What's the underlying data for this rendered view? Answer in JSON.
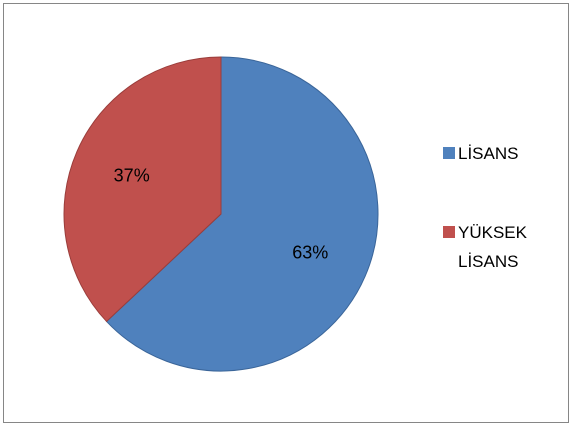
{
  "chart_data": {
    "type": "pie",
    "categories": [
      "LİSANS",
      "YÜKSEK LİSANS"
    ],
    "values": [
      63,
      37
    ],
    "data_labels": [
      "63%",
      "37%"
    ],
    "colors": [
      "#4F81BD",
      "#C0504D"
    ],
    "legend": {
      "position": "right",
      "entries": [
        {
          "lines": [
            "LİSANS"
          ]
        },
        {
          "lines": [
            "YÜKSEK",
            "LİSANS"
          ]
        }
      ]
    },
    "title": ""
  }
}
